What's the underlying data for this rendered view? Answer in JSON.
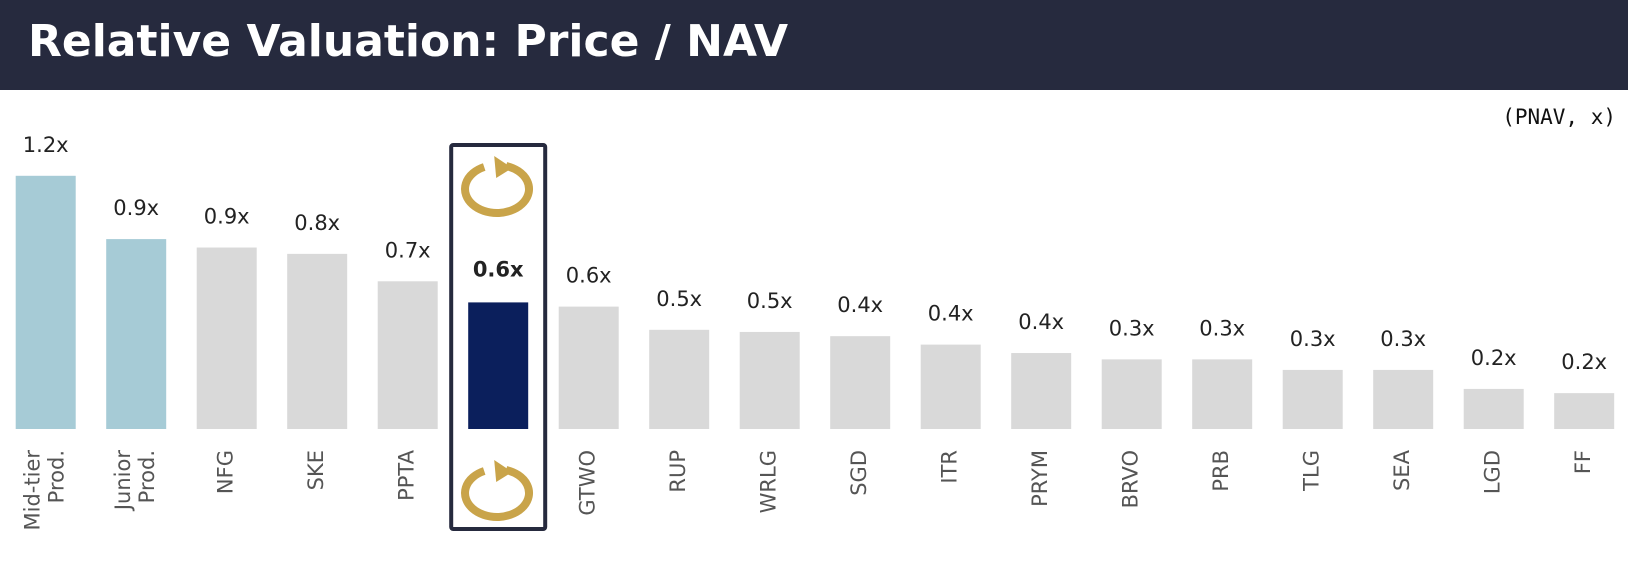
{
  "chart_data": {
    "type": "bar",
    "title": "Relative Valuation: Price / NAV",
    "subtitle": "(PNAV, x)",
    "categories": [
      "Mid-tier Prod.",
      "Junior Prod.",
      "NFG",
      "SKE",
      "PPTA",
      null,
      "GTWO",
      "RUP",
      "WRLG",
      "SGD",
      "ITR",
      "PRYM",
      "BRVO",
      "PRB",
      "TLG",
      "SEA",
      "LGD",
      "FF"
    ],
    "values": [
      1.2,
      0.9,
      0.86,
      0.83,
      0.7,
      0.6,
      0.58,
      0.47,
      0.46,
      0.44,
      0.4,
      0.36,
      0.33,
      0.33,
      0.28,
      0.28,
      0.19,
      0.17
    ],
    "value_labels": [
      "1.2x",
      "0.9x",
      "0.9x",
      "0.8x",
      "0.7x",
      "0.6x",
      "0.6x",
      "0.5x",
      "0.5x",
      "0.4x",
      "0.4x",
      "0.4x",
      "0.3x",
      "0.3x",
      "0.3x",
      "0.3x",
      "0.2x",
      "0.2x"
    ],
    "colors": [
      "#a6cbd6",
      "#a6cbd6",
      "#d9d9d9",
      "#d9d9d9",
      "#d9d9d9",
      "#0b1f5c",
      "#d9d9d9",
      "#d9d9d9",
      "#d9d9d9",
      "#d9d9d9",
      "#d9d9d9",
      "#d9d9d9",
      "#d9d9d9",
      "#d9d9d9",
      "#d9d9d9",
      "#d9d9d9",
      "#d9d9d9",
      "#d9d9d9"
    ],
    "ylim": [
      0,
      1.3
    ]
  }
}
